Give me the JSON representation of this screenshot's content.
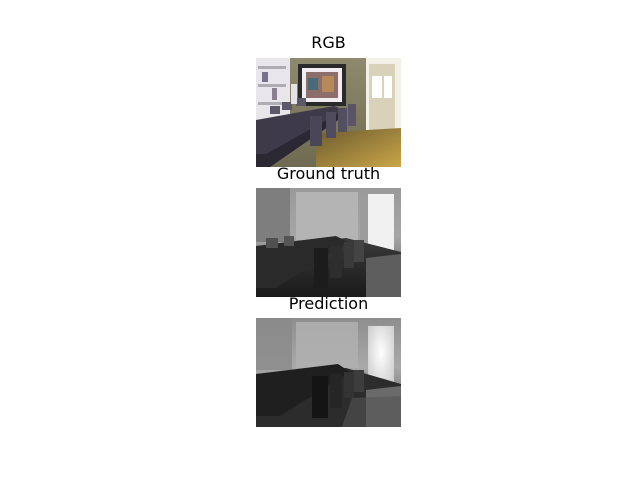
{
  "figure": {
    "panels": [
      {
        "title": "RGB",
        "image": "rgb-dining-room-photo"
      },
      {
        "title": "Ground truth",
        "image": "ground-truth-depth-map"
      },
      {
        "title": "Prediction",
        "image": "predicted-depth-map"
      }
    ]
  }
}
